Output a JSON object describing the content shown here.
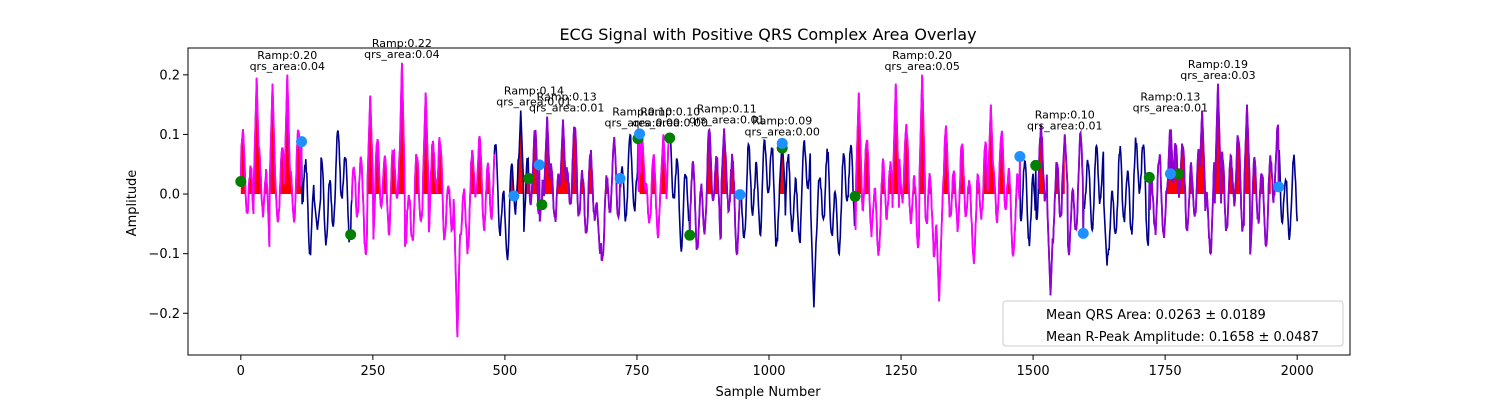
{
  "chart_data": {
    "type": "line",
    "title": "ECG Signal with Positive QRS Complex Area Overlay",
    "xlabel": "Sample Number",
    "ylabel": "Amplitude",
    "xlim": [
      -100,
      2100
    ],
    "ylim": [
      -0.27,
      0.245
    ],
    "xticks": [
      0,
      250,
      500,
      750,
      1000,
      1250,
      1500,
      1750,
      2000
    ],
    "yticks": [
      -0.2,
      -0.1,
      0.0,
      0.1,
      0.2
    ],
    "xtick_labels": [
      "0",
      "250",
      "500",
      "750",
      "1000",
      "1250",
      "1500",
      "1750",
      "2000"
    ],
    "ytick_labels": [
      "−0.2",
      "−0.1",
      "0.0",
      "0.1",
      "0.2"
    ],
    "grid": false,
    "legend_position": "lower-right",
    "legend_entries": [
      "Mean QRS Area: 0.0263 ± 0.0189",
      "Mean R-Peak Amplitude: 0.1658 ± 0.0487"
    ],
    "colors": {
      "baseline": "#00008b",
      "qrs_segment": "#ff00ff",
      "qrs_segment_alt": "#9400d3",
      "area_fill": "#ff0000",
      "onset_marker": "#008000",
      "offset_marker": "#1e90ff"
    },
    "segments": [
      {
        "start": 0,
        "end": 115,
        "color": "#ff00ff"
      },
      {
        "start": 210,
        "end": 480,
        "color": "#ff00ff"
      },
      {
        "start": 545,
        "end": 720,
        "color": "#9400d3"
      },
      {
        "start": 752,
        "end": 810,
        "color": "#ff00ff"
      },
      {
        "start": 850,
        "end": 945,
        "color": "#9400d3"
      },
      {
        "start": 1163,
        "end": 1475,
        "color": "#ff00ff"
      },
      {
        "start": 1510,
        "end": 1595,
        "color": "#9400d3"
      },
      {
        "start": 1720,
        "end": 1965,
        "color": "#9400d3"
      }
    ],
    "r_peaks": [
      {
        "x": 30,
        "y": 0.195
      },
      {
        "x": 60,
        "y": 0.185
      },
      {
        "x": 88,
        "y": 0.2
      },
      {
        "x": 245,
        "y": 0.165
      },
      {
        "x": 305,
        "y": 0.22
      },
      {
        "x": 350,
        "y": 0.17
      },
      {
        "x": 530,
        "y": 0.14
      },
      {
        "x": 580,
        "y": 0.13
      },
      {
        "x": 610,
        "y": 0.125
      },
      {
        "x": 760,
        "y": 0.1
      },
      {
        "x": 800,
        "y": 0.1
      },
      {
        "x": 915,
        "y": 0.11
      },
      {
        "x": 1025,
        "y": 0.09
      },
      {
        "x": 1170,
        "y": 0.17
      },
      {
        "x": 1240,
        "y": 0.185
      },
      {
        "x": 1290,
        "y": 0.2
      },
      {
        "x": 1420,
        "y": 0.15
      },
      {
        "x": 1560,
        "y": 0.1
      },
      {
        "x": 1760,
        "y": 0.13
      },
      {
        "x": 1820,
        "y": 0.14
      },
      {
        "x": 1850,
        "y": 0.185
      },
      {
        "x": 1905,
        "y": 0.15
      }
    ],
    "red_fills": [
      [
        0,
        115
      ],
      [
        240,
        470
      ],
      [
        510,
        700
      ],
      [
        755,
        805
      ],
      [
        860,
        940
      ],
      [
        1020,
        1030
      ],
      [
        1160,
        1460
      ],
      [
        1510,
        1560
      ],
      [
        1745,
        1950
      ]
    ],
    "onset_markers": [
      {
        "x": 0,
        "y": 0.021
      },
      {
        "x": 208,
        "y": -0.068
      },
      {
        "x": 545,
        "y": 0.026
      },
      {
        "x": 570,
        "y": -0.018
      },
      {
        "x": 752,
        "y": 0.093
      },
      {
        "x": 812,
        "y": 0.094
      },
      {
        "x": 850,
        "y": -0.069
      },
      {
        "x": 1025,
        "y": 0.077
      },
      {
        "x": 1163,
        "y": -0.004
      },
      {
        "x": 1505,
        "y": 0.048
      },
      {
        "x": 1720,
        "y": 0.028
      },
      {
        "x": 1775,
        "y": 0.034
      }
    ],
    "offset_markers": [
      {
        "x": 115,
        "y": 0.088
      },
      {
        "x": 517,
        "y": -0.003
      },
      {
        "x": 565,
        "y": 0.049
      },
      {
        "x": 718,
        "y": 0.026
      },
      {
        "x": 755,
        "y": 0.101
      },
      {
        "x": 945,
        "y": -0.001
      },
      {
        "x": 1025,
        "y": 0.085
      },
      {
        "x": 1475,
        "y": 0.063
      },
      {
        "x": 1595,
        "y": -0.066
      },
      {
        "x": 1760,
        "y": 0.034
      },
      {
        "x": 1965,
        "y": 0.012
      }
    ],
    "annotations": [
      {
        "x": 88,
        "y": 0.2,
        "lines": [
          "Ramp:0.20",
          "qrs_area:0.04"
        ]
      },
      {
        "x": 305,
        "y": 0.22,
        "lines": [
          "Ramp:0.22",
          "qrs_area:0.04"
        ]
      },
      {
        "x": 555,
        "y": 0.14,
        "lines": [
          "Ramp:0.14",
          "qrs_area:0.01"
        ]
      },
      {
        "x": 617,
        "y": 0.13,
        "lines": [
          "Ramp:0.13",
          "qrs_area:0.01"
        ]
      },
      {
        "x": 760,
        "y": 0.105,
        "lines": [
          "Ramp:0.10",
          "qrs_area:0.00"
        ]
      },
      {
        "x": 813,
        "y": 0.105,
        "lines": [
          "Ramp:0.10",
          "qrs_area:0.00"
        ]
      },
      {
        "x": 920,
        "y": 0.11,
        "lines": [
          "Ramp:0.11",
          "qrs_area:0.01"
        ]
      },
      {
        "x": 1025,
        "y": 0.09,
        "lines": [
          "Ramp:0.09",
          "qrs_area:0.00"
        ]
      },
      {
        "x": 1290,
        "y": 0.2,
        "lines": [
          "Ramp:0.20",
          "qrs_area:0.05"
        ]
      },
      {
        "x": 1560,
        "y": 0.1,
        "lines": [
          "Ramp:0.10",
          "qrs_area:0.01"
        ]
      },
      {
        "x": 1760,
        "y": 0.13,
        "lines": [
          "Ramp:0.13",
          "qrs_area:0.01"
        ]
      },
      {
        "x": 1850,
        "y": 0.185,
        "lines": [
          "Ramp:0.19",
          "qrs_area:0.03"
        ]
      }
    ]
  }
}
